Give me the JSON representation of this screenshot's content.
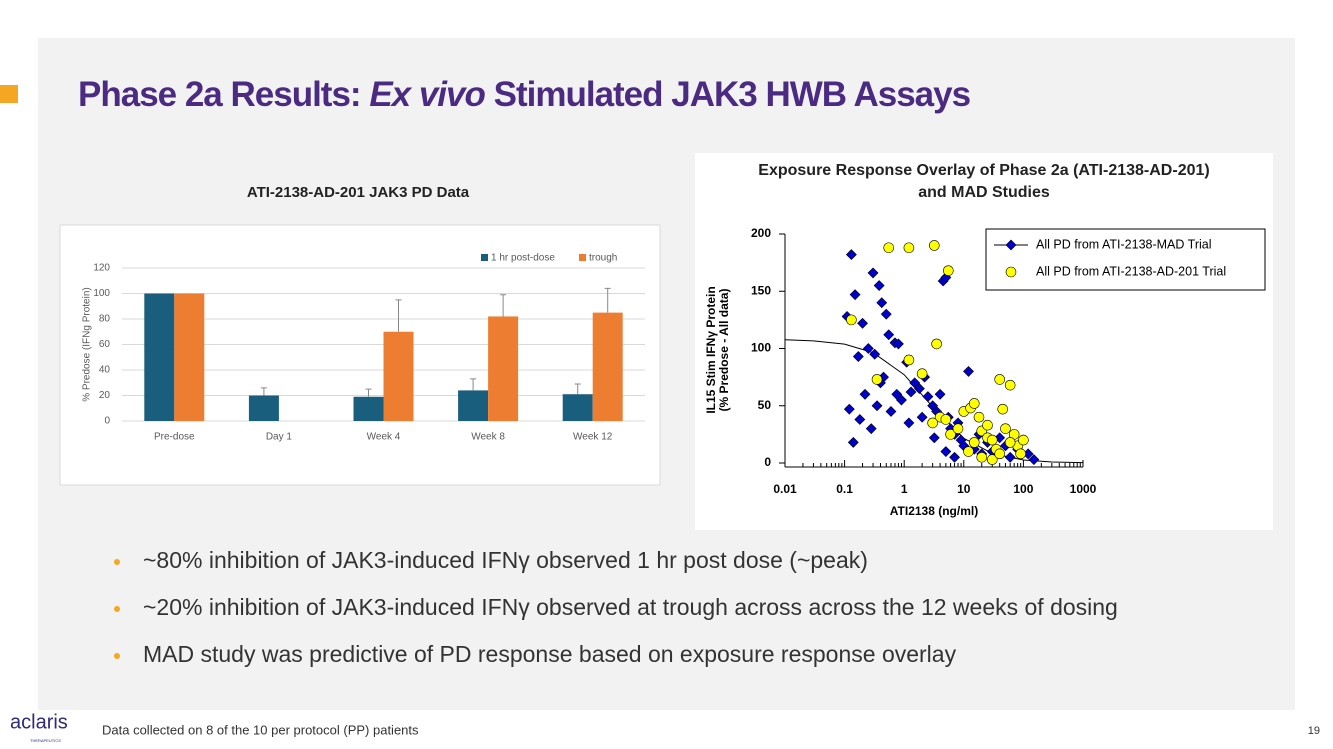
{
  "title_parts": [
    "Phase 2a Results: ",
    "Ex vivo",
    " Stimulated JAK3 HWB Assays"
  ],
  "bullets": [
    "~80% inhibition of JAK3-induced IFNγ observed 1 hr post dose (~peak)",
    "~20% inhibition of JAK3-induced IFNγ observed at trough across across the 12 weeks of dosing",
    "MAD study was predictive of PD response based on exposure response overlay"
  ],
  "footer": {
    "logo": "aclaris",
    "logo_sub": "THERAPEUTICS",
    "note": "Data collected on 8 of the 10 per protocol (PP) patients",
    "page": "19"
  },
  "chart_data": [
    {
      "type": "bar",
      "title": "ATI-2138-AD-201 JAK3 PD Data",
      "ylabel": "% Predose (IFNg Protein)",
      "categories": [
        "Pre-dose",
        "Day 1",
        "Week 4",
        "Week 8",
        "Week 12"
      ],
      "series": [
        {
          "name": "1 hr post-dose",
          "color": "#1a5e7e",
          "values": [
            100,
            20,
            19,
            24,
            21
          ],
          "errors": [
            null,
            6,
            6,
            9,
            8
          ]
        },
        {
          "name": "trough",
          "color": "#ed7d31",
          "values": [
            100,
            null,
            70,
            82,
            85
          ],
          "errors": [
            null,
            null,
            25,
            17,
            19
          ]
        }
      ],
      "ylim": [
        0,
        120
      ],
      "yticks": [
        0,
        20,
        40,
        60,
        80,
        100,
        120
      ],
      "grid": true,
      "legend": "top-right"
    },
    {
      "type": "scatter",
      "title": [
        "Exposure Response Overlay of Phase 2a (ATI-2138-AD-201)",
        "and MAD Studies"
      ],
      "ylabel": [
        "IL15 Stim IFNγ Protein",
        "(% Predose - All data)"
      ],
      "xlabel": "ATI2138 (ng/ml)",
      "xscale": "log",
      "xlim": [
        0.01,
        1000
      ],
      "xticks": [
        0.01,
        0.1,
        1,
        10,
        100,
        1000
      ],
      "ylim": [
        0,
        200
      ],
      "yticks": [
        0,
        50,
        100,
        150,
        200
      ],
      "legend": "top-right",
      "series": [
        {
          "name": "All PD from ATI-2138-MAD Trial",
          "color": "#0000cc",
          "marker": "diamond",
          "x": [
            0.13,
            0.3,
            0.38,
            0.42,
            0.15,
            0.11,
            0.2,
            0.5,
            0.55,
            0.25,
            0.32,
            0.17,
            0.7,
            0.8,
            0.12,
            0.14,
            0.18,
            0.22,
            0.28,
            0.35,
            0.45,
            0.6,
            0.75,
            0.9,
            1.1,
            1.3,
            1.5,
            1.8,
            2.2,
            2.5,
            3,
            3.5,
            4,
            4.5,
            5,
            5.5,
            6,
            7,
            8,
            9,
            10,
            12,
            15,
            18,
            20,
            25,
            30,
            40,
            50,
            60,
            80,
            100,
            120,
            150,
            0.4,
            1.2,
            2,
            3.2,
            5,
            7
          ],
          "values": [
            182,
            166,
            155,
            140,
            147,
            128,
            122,
            130,
            112,
            100,
            95,
            93,
            105,
            104,
            47,
            18,
            38,
            60,
            30,
            50,
            75,
            45,
            60,
            55,
            88,
            62,
            70,
            65,
            75,
            58,
            50,
            45,
            60,
            159,
            162,
            40,
            30,
            25,
            35,
            20,
            15,
            80,
            12,
            25,
            8,
            18,
            10,
            22,
            15,
            5,
            12,
            20,
            8,
            3,
            70,
            35,
            40,
            22,
            10,
            5
          ]
        },
        {
          "name": "All PD from ATI-2138-AD-201 Trial",
          "color": "#ffff00",
          "marker": "circle",
          "x": [
            0.55,
            1.2,
            3.2,
            5.5,
            0.13,
            0.35,
            1.2,
            3.5,
            2,
            4,
            3,
            5,
            6,
            8,
            10,
            13,
            15,
            18,
            20,
            25,
            30,
            35,
            40,
            45,
            50,
            60,
            70,
            80,
            90,
            100,
            12,
            20,
            30,
            40,
            60,
            15,
            25
          ],
          "values": [
            188,
            188,
            190,
            168,
            125,
            73,
            90,
            104,
            78,
            40,
            35,
            38,
            25,
            30,
            45,
            48,
            52,
            40,
            28,
            22,
            20,
            12,
            73,
            47,
            30,
            68,
            25,
            15,
            8,
            20,
            10,
            5,
            3,
            8,
            18,
            18,
            33
          ]
        }
      ],
      "fit_curve": {
        "x": [
          0.01,
          0.03,
          0.1,
          0.3,
          1,
          3,
          10,
          30,
          100,
          300,
          1000
        ],
        "values": [
          107.6,
          106.7,
          103.8,
          96.4,
          77.1,
          49.1,
          21.6,
          8.3,
          2.6,
          0.9,
          0.3
        ]
      }
    }
  ]
}
